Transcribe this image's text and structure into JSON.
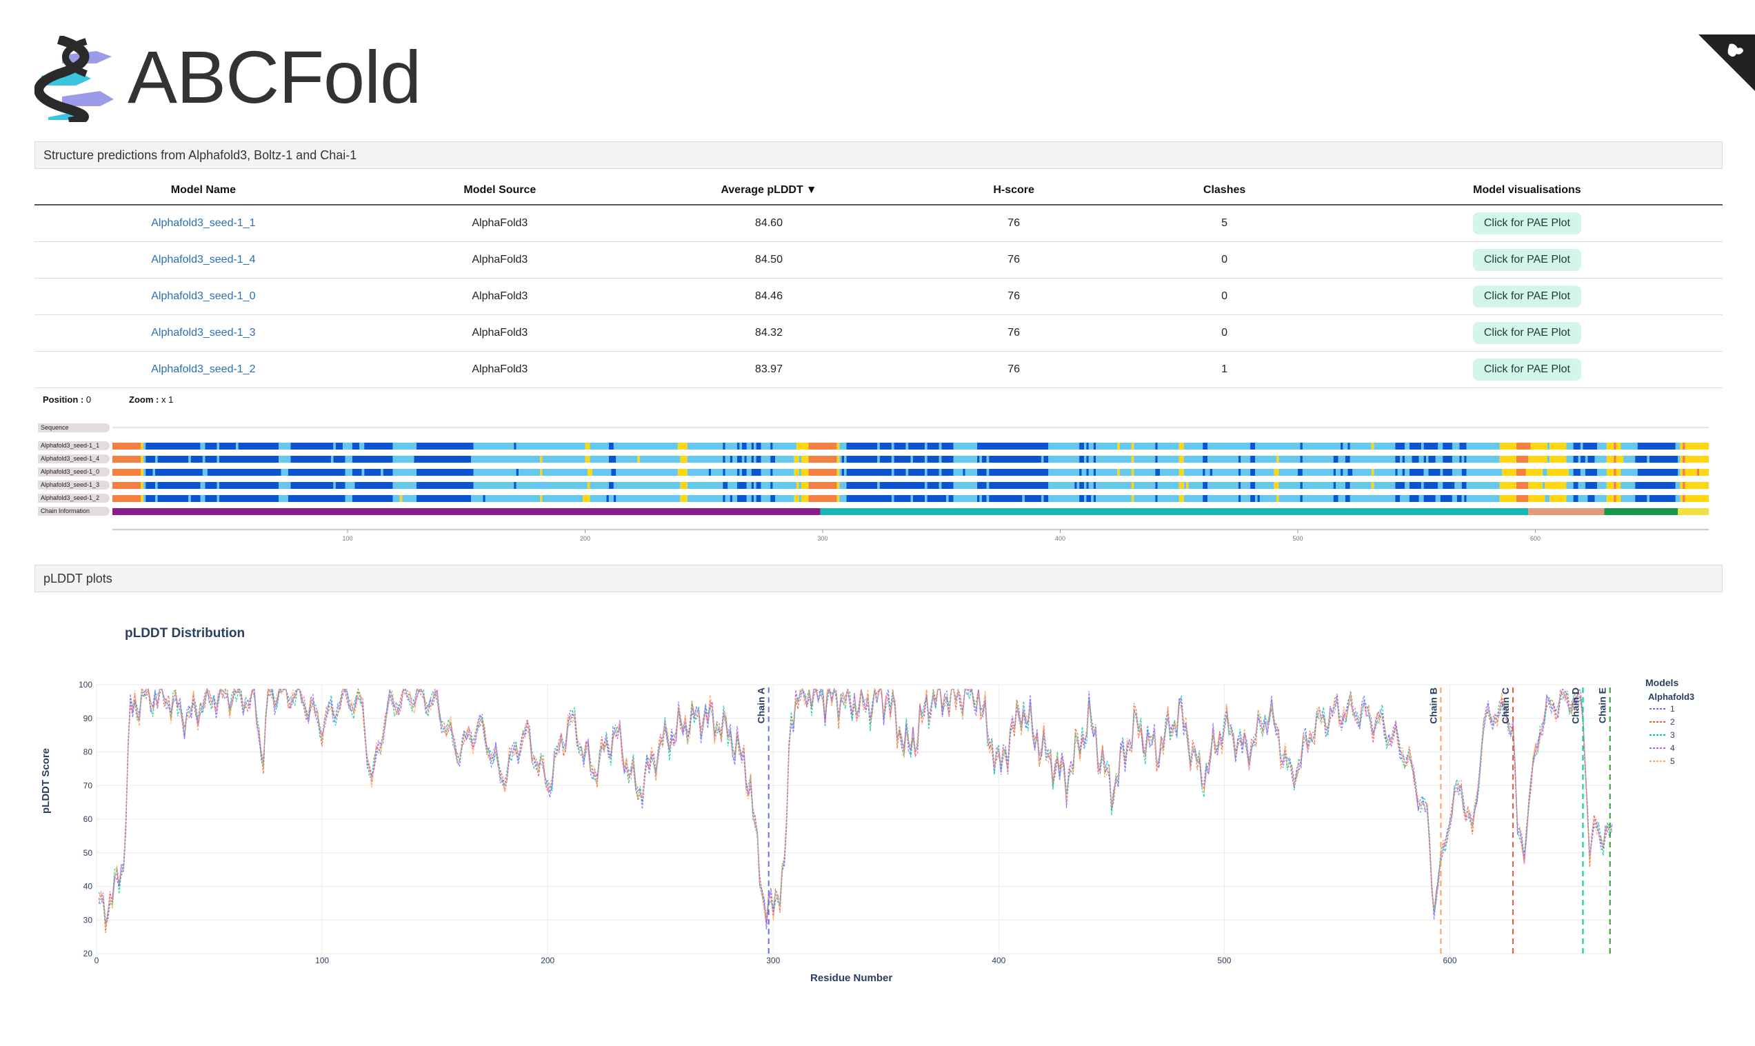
{
  "app": {
    "title": "ABCFold"
  },
  "sections": {
    "structure_title": "Structure predictions from Alphafold3, Boltz-1 and Chai-1",
    "plddt_title": "pLDDT plots"
  },
  "table": {
    "headers": [
      "Model Name",
      "Model Source",
      "Average pLDDT",
      "H-score",
      "Clashes",
      "Model visualisations"
    ],
    "sort_indicator": "▼",
    "rows": [
      {
        "name": "Alphafold3_seed-1_1",
        "source": "AlphaFold3",
        "plddt": "84.60",
        "hscore": "76",
        "clashes": "5",
        "action": "Click for PAE Plot"
      },
      {
        "name": "Alphafold3_seed-1_4",
        "source": "AlphaFold3",
        "plddt": "84.50",
        "hscore": "76",
        "clashes": "0",
        "action": "Click for PAE Plot"
      },
      {
        "name": "Alphafold3_seed-1_0",
        "source": "AlphaFold3",
        "plddt": "84.46",
        "hscore": "76",
        "clashes": "0",
        "action": "Click for PAE Plot"
      },
      {
        "name": "Alphafold3_seed-1_3",
        "source": "AlphaFold3",
        "plddt": "84.32",
        "hscore": "76",
        "clashes": "0",
        "action": "Click for PAE Plot"
      },
      {
        "name": "Alphafold3_seed-1_2",
        "source": "AlphaFold3",
        "plddt": "83.97",
        "hscore": "76",
        "clashes": "1",
        "action": "Click for PAE Plot"
      }
    ]
  },
  "viewer": {
    "position_label": "Position :",
    "position_value": "0",
    "zoom_label": "Zoom :",
    "zoom_value": "x 1",
    "tracks": [
      "Sequence",
      "Alphafold3_seed-1_1",
      "Alphafold3_seed-1_4",
      "Alphafold3_seed-1_0",
      "Alphafold3_seed-1_3",
      "Alphafold3_seed-1_2",
      "Chain Information"
    ],
    "ruler_ticks": [
      "100",
      "200",
      "300",
      "400",
      "500",
      "600"
    ],
    "colors": {
      "very_high": "#0b53d1",
      "high": "#65c8ef",
      "low": "#ffd711",
      "very_low": "#f47f41"
    },
    "chains": [
      {
        "start": 1,
        "end": 298,
        "color": "#8a1b8e"
      },
      {
        "start": 299,
        "end": 596,
        "color": "#19b6b8"
      },
      {
        "start": 597,
        "end": 628,
        "color": "#e39a7b"
      },
      {
        "start": 629,
        "end": 659,
        "color": "#149a4a"
      },
      {
        "start": 660,
        "end": 672,
        "color": "#f0e040"
      }
    ]
  },
  "chart_data": {
    "type": "line",
    "title": "pLDDT Distribution",
    "xlabel": "Residue Number",
    "ylabel": "pLDDT Score",
    "xlim": [
      0,
      672
    ],
    "ylim": [
      20,
      100
    ],
    "xticks": [
      "0",
      "100",
      "200",
      "300",
      "400",
      "500",
      "600"
    ],
    "yticks": [
      "20",
      "30",
      "40",
      "50",
      "60",
      "70",
      "80",
      "90",
      "100"
    ],
    "legend_title": "Models",
    "legend_group": "Alphafold3",
    "series": [
      {
        "name": "1",
        "color": "#636efa"
      },
      {
        "name": "2",
        "color": "#ef553b"
      },
      {
        "name": "3",
        "color": "#00cc96"
      },
      {
        "name": "4",
        "color": "#ab63fa"
      },
      {
        "name": "5",
        "color": "#ffa15a"
      }
    ],
    "profile": {
      "x": [
        0,
        3,
        6,
        9,
        12,
        15,
        20,
        30,
        40,
        50,
        60,
        70,
        74,
        76,
        80,
        90,
        100,
        110,
        118,
        122,
        126,
        130,
        140,
        150,
        160,
        170,
        180,
        190,
        200,
        210,
        220,
        230,
        240,
        250,
        260,
        270,
        280,
        285,
        290,
        293,
        296,
        299,
        302,
        305,
        308,
        312,
        315,
        320,
        330,
        340,
        350,
        360,
        370,
        380,
        390,
        400,
        410,
        420,
        430,
        440,
        450,
        460,
        470,
        480,
        490,
        500,
        510,
        520,
        530,
        540,
        550,
        560,
        570,
        580,
        585,
        590,
        593,
        596,
        600,
        605,
        610,
        615,
        620,
        625,
        628,
        630,
        633,
        636,
        640,
        645,
        650,
        655,
        659,
        662,
        665,
        668,
        672
      ],
      "y": [
        38,
        32,
        36,
        40,
        48,
        92,
        96,
        97,
        90,
        96,
        97,
        95,
        78,
        96,
        98,
        97,
        88,
        97,
        93,
        70,
        85,
        94,
        97,
        95,
        80,
        88,
        72,
        86,
        70,
        90,
        74,
        86,
        68,
        82,
        88,
        91,
        86,
        80,
        70,
        50,
        35,
        32,
        38,
        45,
        92,
        97,
        98,
        97,
        96,
        94,
        97,
        80,
        96,
        97,
        98,
        75,
        93,
        80,
        72,
        90,
        68,
        88,
        80,
        92,
        72,
        88,
        80,
        92,
        72,
        88,
        92,
        92,
        88,
        80,
        70,
        60,
        35,
        45,
        62,
        70,
        55,
        88,
        92,
        91,
        88,
        55,
        52,
        70,
        88,
        94,
        95,
        96,
        92,
        50,
        58,
        55,
        55
      ]
    },
    "chain_boundaries": [
      {
        "label": "Chain A",
        "x": 298,
        "color": "#636efa"
      },
      {
        "label": "Chain B",
        "x": 596,
        "color": "#ffa15a"
      },
      {
        "label": "Chain C",
        "x": 628,
        "color": "#ef553b"
      },
      {
        "label": "Chain D",
        "x": 659,
        "color": "#00cc96"
      },
      {
        "label": "Chain E",
        "x": 671,
        "color": "#2ca02c"
      }
    ]
  }
}
